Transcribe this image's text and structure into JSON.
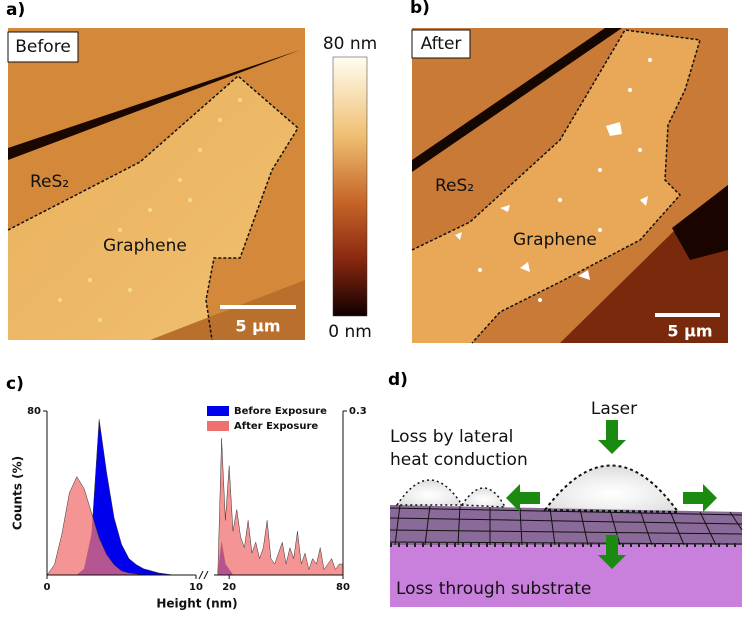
{
  "panels": {
    "a": {
      "label": "a)",
      "tag": "Before",
      "material": "ReS₂",
      "flake": "Graphene",
      "scale_bar": "5 µm"
    },
    "b": {
      "label": "b)",
      "tag": "After",
      "material": "ReS₂",
      "flake": "Graphene",
      "scale_bar": "5 µm"
    },
    "colorbar": {
      "max": "80 nm",
      "min": "0 nm"
    },
    "c": {
      "label": "c)"
    },
    "d": {
      "label": "d)",
      "laser": "Laser",
      "lateral": [
        "Loss by lateral",
        "heat conduction"
      ],
      "substrate": "Loss through substrate"
    }
  },
  "chart_data": [
    {
      "type": "area",
      "ylabel": "Counts (%)",
      "xlabel": "Height (nm)",
      "x": [
        0,
        0.5,
        1,
        1.5,
        2,
        2.5,
        3,
        3.5,
        4,
        4.5,
        5,
        5.5,
        6,
        6.5,
        7,
        7.5,
        8,
        8.5,
        9,
        9.5,
        10
      ],
      "xlim": [
        0,
        10
      ],
      "xticks": [
        0,
        10
      ],
      "ylim": [
        0,
        80
      ],
      "yticks": [
        80
      ],
      "series": [
        {
          "name": "Before Exposure",
          "color": "#0000ee",
          "values": [
            0,
            0,
            0,
            0,
            0,
            3,
            20,
            76,
            50,
            28,
            15,
            8,
            5,
            3,
            2,
            1,
            0.5,
            0,
            0,
            0,
            0
          ]
        },
        {
          "name": "After Exposure",
          "color": "#f07070",
          "values": [
            0,
            5,
            20,
            40,
            48,
            42,
            30,
            18,
            10,
            5,
            2,
            1,
            0.5,
            0,
            0,
            0,
            0,
            0,
            0,
            0,
            0
          ]
        }
      ]
    },
    {
      "type": "area",
      "x": [
        14,
        16,
        18,
        20,
        22,
        24,
        26,
        28,
        30,
        32,
        34,
        36,
        38,
        40,
        42,
        44,
        46,
        48,
        50,
        52,
        54,
        56,
        58,
        60,
        62,
        64,
        66,
        68,
        70,
        72,
        74,
        76,
        78,
        80
      ],
      "xlim": [
        12,
        80
      ],
      "xticks": [
        20,
        80
      ],
      "ylim": [
        0,
        0.3
      ],
      "yticks": [
        0.3
      ],
      "series": [
        {
          "color": "#0000ee",
          "values": [
            0,
            0.06,
            0.02,
            0.01,
            0,
            0,
            0,
            0,
            0,
            0,
            0,
            0,
            0,
            0,
            0,
            0,
            0,
            0,
            0,
            0,
            0,
            0,
            0,
            0,
            0,
            0,
            0,
            0,
            0,
            0,
            0,
            0,
            0,
            0
          ]
        },
        {
          "color": "#f07070",
          "values": [
            0,
            0.25,
            0.1,
            0.2,
            0.08,
            0.12,
            0.07,
            0.05,
            0.1,
            0.04,
            0.06,
            0.03,
            0.05,
            0.1,
            0.03,
            0.02,
            0.04,
            0.06,
            0.02,
            0.05,
            0.03,
            0.08,
            0.02,
            0.04,
            0.01,
            0.03,
            0.02,
            0.05,
            0.01,
            0.02,
            0.03,
            0.01,
            0.02,
            0.02
          ]
        }
      ]
    }
  ]
}
